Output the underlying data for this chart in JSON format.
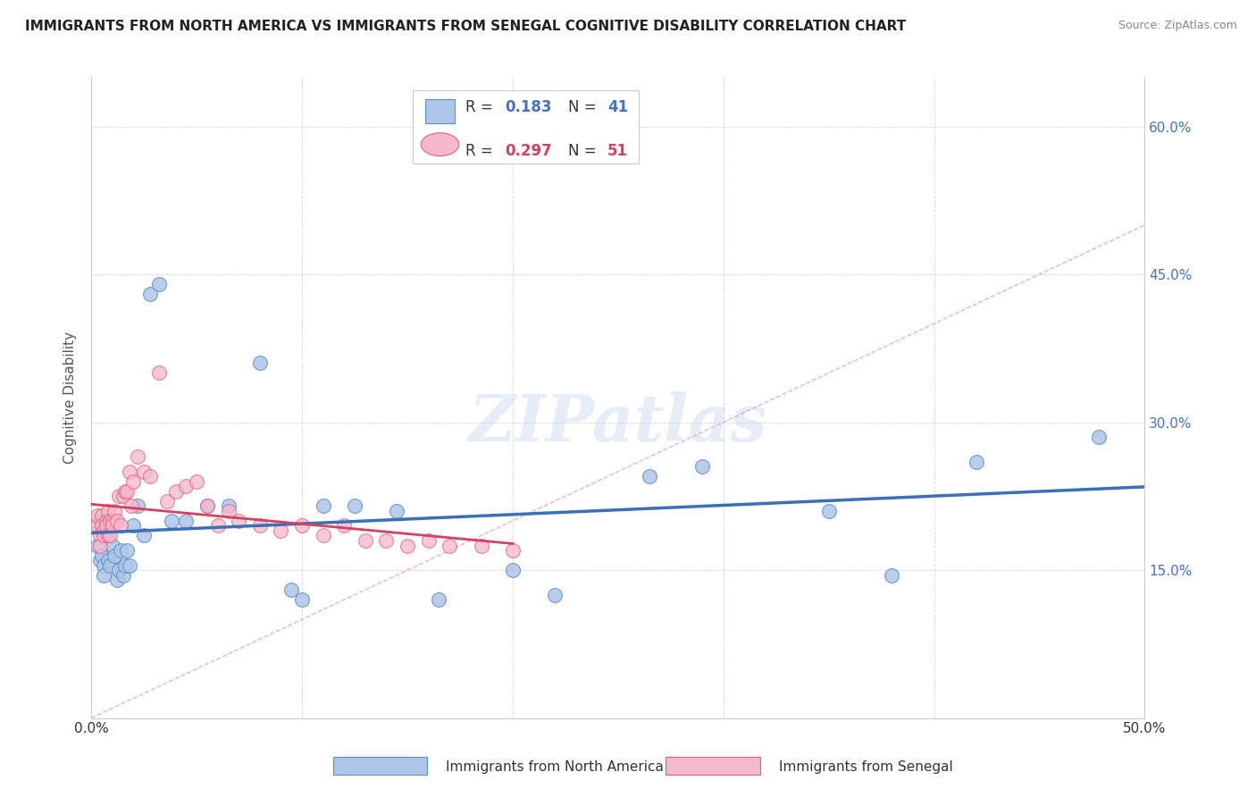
{
  "title": "IMMIGRANTS FROM NORTH AMERICA VS IMMIGRANTS FROM SENEGAL COGNITIVE DISABILITY CORRELATION CHART",
  "source": "Source: ZipAtlas.com",
  "ylabel": "Cognitive Disability",
  "xlim": [
    0.0,
    0.5
  ],
  "ylim": [
    0.0,
    0.65
  ],
  "blue_color": "#aec6e8",
  "blue_edge_color": "#5b8ec4",
  "blue_line_color": "#3a6fba",
  "pink_color": "#f5b8cc",
  "pink_edge_color": "#e0607a",
  "pink_line_color": "#d44060",
  "pink_dash_color": "#e8a0b0",
  "watermark_text": "ZIPatlas",
  "legend_R_blue": "0.183",
  "legend_N_blue": "41",
  "legend_R_pink": "0.297",
  "legend_N_pink": "51",
  "blue_color_legend": "#4472c4",
  "pink_color_legend": "#e05878",
  "background_color": "#ffffff",
  "grid_color": "#cccccc",
  "blue_x": [
    0.003,
    0.004,
    0.005,
    0.006,
    0.006,
    0.007,
    0.008,
    0.009,
    0.01,
    0.011,
    0.012,
    0.013,
    0.014,
    0.015,
    0.016,
    0.017,
    0.018,
    0.02,
    0.022,
    0.025,
    0.028,
    0.032,
    0.038,
    0.045,
    0.055,
    0.065,
    0.08,
    0.095,
    0.1,
    0.11,
    0.125,
    0.145,
    0.165,
    0.2,
    0.22,
    0.265,
    0.29,
    0.35,
    0.38,
    0.42,
    0.478
  ],
  "blue_y": [
    0.175,
    0.16,
    0.165,
    0.155,
    0.145,
    0.185,
    0.16,
    0.155,
    0.175,
    0.165,
    0.14,
    0.15,
    0.17,
    0.145,
    0.155,
    0.17,
    0.155,
    0.195,
    0.215,
    0.185,
    0.43,
    0.44,
    0.2,
    0.2,
    0.215,
    0.215,
    0.36,
    0.13,
    0.12,
    0.215,
    0.215,
    0.21,
    0.12,
    0.15,
    0.125,
    0.245,
    0.255,
    0.21,
    0.145,
    0.26,
    0.285
  ],
  "pink_x": [
    0.002,
    0.003,
    0.003,
    0.004,
    0.004,
    0.005,
    0.005,
    0.006,
    0.006,
    0.007,
    0.007,
    0.008,
    0.008,
    0.009,
    0.009,
    0.01,
    0.01,
    0.011,
    0.012,
    0.013,
    0.014,
    0.015,
    0.016,
    0.017,
    0.018,
    0.019,
    0.02,
    0.022,
    0.025,
    0.028,
    0.032,
    0.036,
    0.04,
    0.045,
    0.05,
    0.055,
    0.06,
    0.065,
    0.07,
    0.08,
    0.09,
    0.1,
    0.11,
    0.12,
    0.13,
    0.14,
    0.15,
    0.16,
    0.17,
    0.185,
    0.2
  ],
  "pink_y": [
    0.2,
    0.195,
    0.205,
    0.185,
    0.175,
    0.205,
    0.195,
    0.19,
    0.185,
    0.2,
    0.195,
    0.185,
    0.21,
    0.185,
    0.2,
    0.2,
    0.195,
    0.21,
    0.2,
    0.225,
    0.195,
    0.225,
    0.23,
    0.23,
    0.25,
    0.215,
    0.24,
    0.265,
    0.25,
    0.245,
    0.35,
    0.22,
    0.23,
    0.235,
    0.24,
    0.215,
    0.195,
    0.21,
    0.2,
    0.195,
    0.19,
    0.195,
    0.185,
    0.195,
    0.18,
    0.18,
    0.175,
    0.18,
    0.175,
    0.175,
    0.17
  ]
}
